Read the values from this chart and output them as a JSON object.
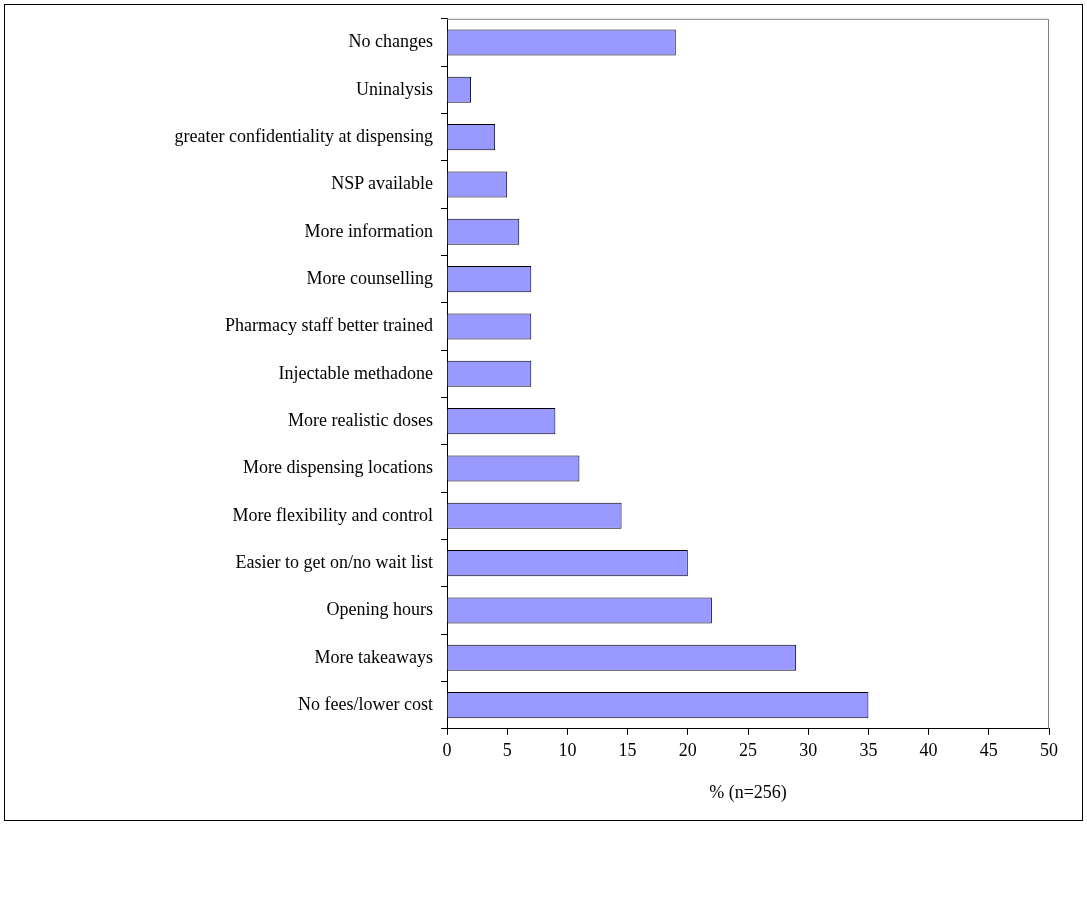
{
  "chart_data": {
    "type": "bar",
    "orientation": "horizontal",
    "xlabel": "% (n=256)",
    "categories": [
      "No changes",
      "Uninalysis",
      "greater confidentiality at dispensing",
      "NSP available",
      "More information",
      "More counselling",
      "Pharmacy staff better trained",
      "Injectable methadone",
      "More realistic doses",
      "More dispensing locations",
      "More flexibility and control",
      "Easier to get on/no wait list",
      "Opening hours",
      "More takeaways",
      "No fees/lower cost"
    ],
    "values": [
      19,
      2,
      4,
      5,
      6,
      7,
      7,
      7,
      9,
      11,
      14.5,
      20,
      22,
      29,
      35
    ],
    "color": "#9999ff",
    "xlim": [
      0,
      50
    ],
    "xticks": [
      0,
      5,
      10,
      15,
      20,
      25,
      30,
      35,
      40,
      45,
      50
    ],
    "grid": false,
    "legend": false
  }
}
